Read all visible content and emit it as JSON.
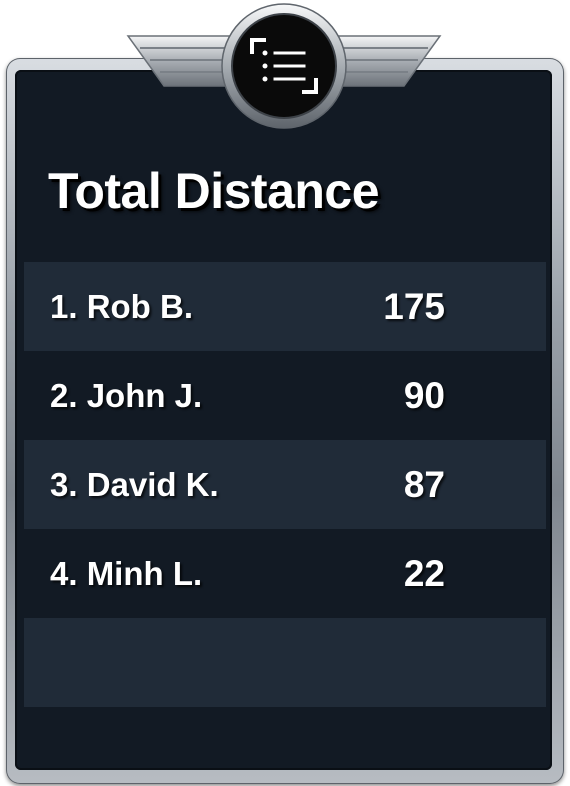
{
  "leaderboard": {
    "title": "Total Distance",
    "emblem_icon": "list-icon",
    "rows": [
      {
        "rank_name": "1. Rob B.",
        "value": "175"
      },
      {
        "rank_name": "2. John J.",
        "value": "90"
      },
      {
        "rank_name": "3. David K.",
        "value": "87"
      },
      {
        "rank_name": "4. Minh L.",
        "value": "22"
      },
      {
        "rank_name": "",
        "value": ""
      }
    ]
  },
  "colors": {
    "panel_dark": "#121a24",
    "panel_row_alt": "#202b38",
    "text": "#ffffff"
  }
}
